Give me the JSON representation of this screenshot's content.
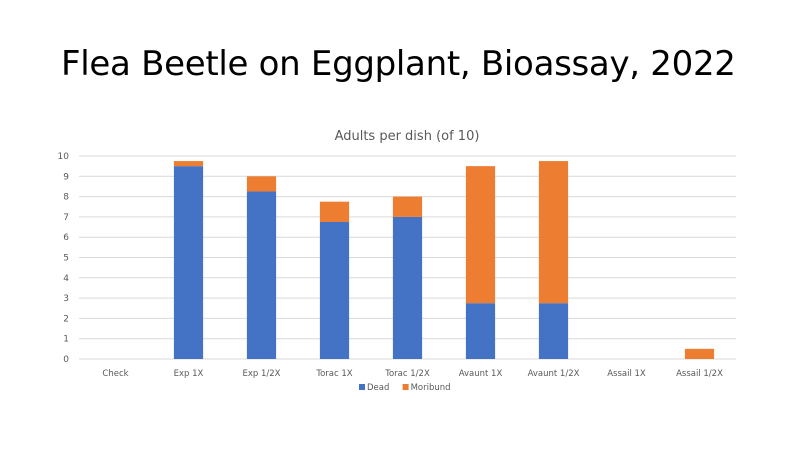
{
  "slide": {
    "title": "Flea Beetle on Eggplant, Bioassay, 2022"
  },
  "chart_data": {
    "type": "bar",
    "stacked": true,
    "title": "Adults per dish (of 10)",
    "xlabel": "",
    "ylabel": "",
    "categories": [
      "Check",
      "Exp 1X",
      "Exp 1/2X",
      "Torac 1X",
      "Torac 1/2X",
      "Avaunt 1X",
      "Avaunt 1/2X",
      "Assail 1X",
      "Assail 1/2X"
    ],
    "series": [
      {
        "name": "Dead",
        "color": "#4472c4",
        "values": [
          0,
          9.5,
          8.25,
          6.75,
          7.0,
          2.75,
          2.75,
          0,
          0
        ]
      },
      {
        "name": "Moribund",
        "color": "#ed7d31",
        "values": [
          0,
          0.25,
          0.75,
          1.0,
          1.0,
          6.75,
          7.0,
          0,
          0.5
        ]
      }
    ],
    "ylim": [
      0,
      10
    ],
    "yticks": [
      0,
      1,
      2,
      3,
      4,
      5,
      6,
      7,
      8,
      9,
      10
    ],
    "grid": true,
    "legend_position": "bottom"
  }
}
